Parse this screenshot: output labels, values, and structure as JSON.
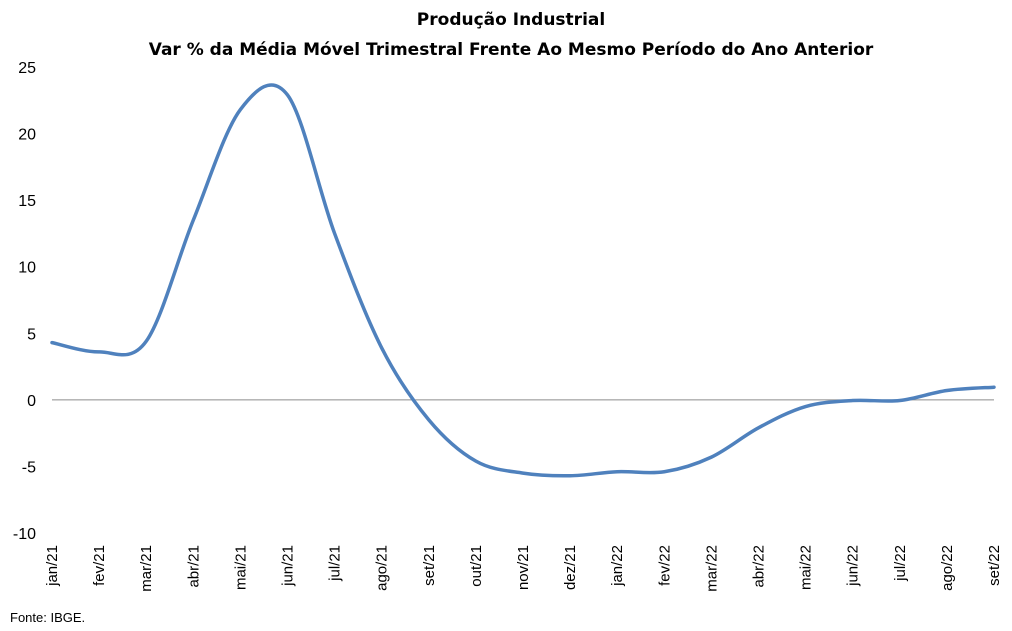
{
  "chart_data": {
    "type": "line",
    "title": "Produção Industrial",
    "subtitle": "Var % da Média Móvel Trimestral Frente Ao Mesmo Período do Ano Anterior",
    "xlabel": "",
    "ylabel": "",
    "ylim": [
      -10,
      25
    ],
    "yticks": [
      25,
      20,
      15,
      10,
      5,
      0,
      -5,
      -10
    ],
    "categories": [
      "jan/21",
      "fev/21",
      "mar/21",
      "abr/21",
      "mai/21",
      "jun/21",
      "jul/21",
      "ago/21",
      "set/21",
      "out/21",
      "nov/21",
      "dez/21",
      "jan/22",
      "fev/22",
      "mar/22",
      "abr/22",
      "mai/22",
      "jun/22",
      "jul/22",
      "ago/22",
      "set/22"
    ],
    "series": [
      {
        "name": "",
        "color": "#4f81bd",
        "values": [
          4.3,
          3.6,
          4.4,
          13.5,
          21.8,
          22.9,
          12.5,
          3.9,
          -1.5,
          -4.6,
          -5.5,
          -5.7,
          -5.4,
          -5.4,
          -4.3,
          -2.1,
          -0.5,
          -0.05,
          -0.05,
          0.7,
          0.95
        ]
      }
    ],
    "grid": false,
    "legend": "none"
  },
  "footer": {
    "source": "Fonte: IBGE."
  }
}
